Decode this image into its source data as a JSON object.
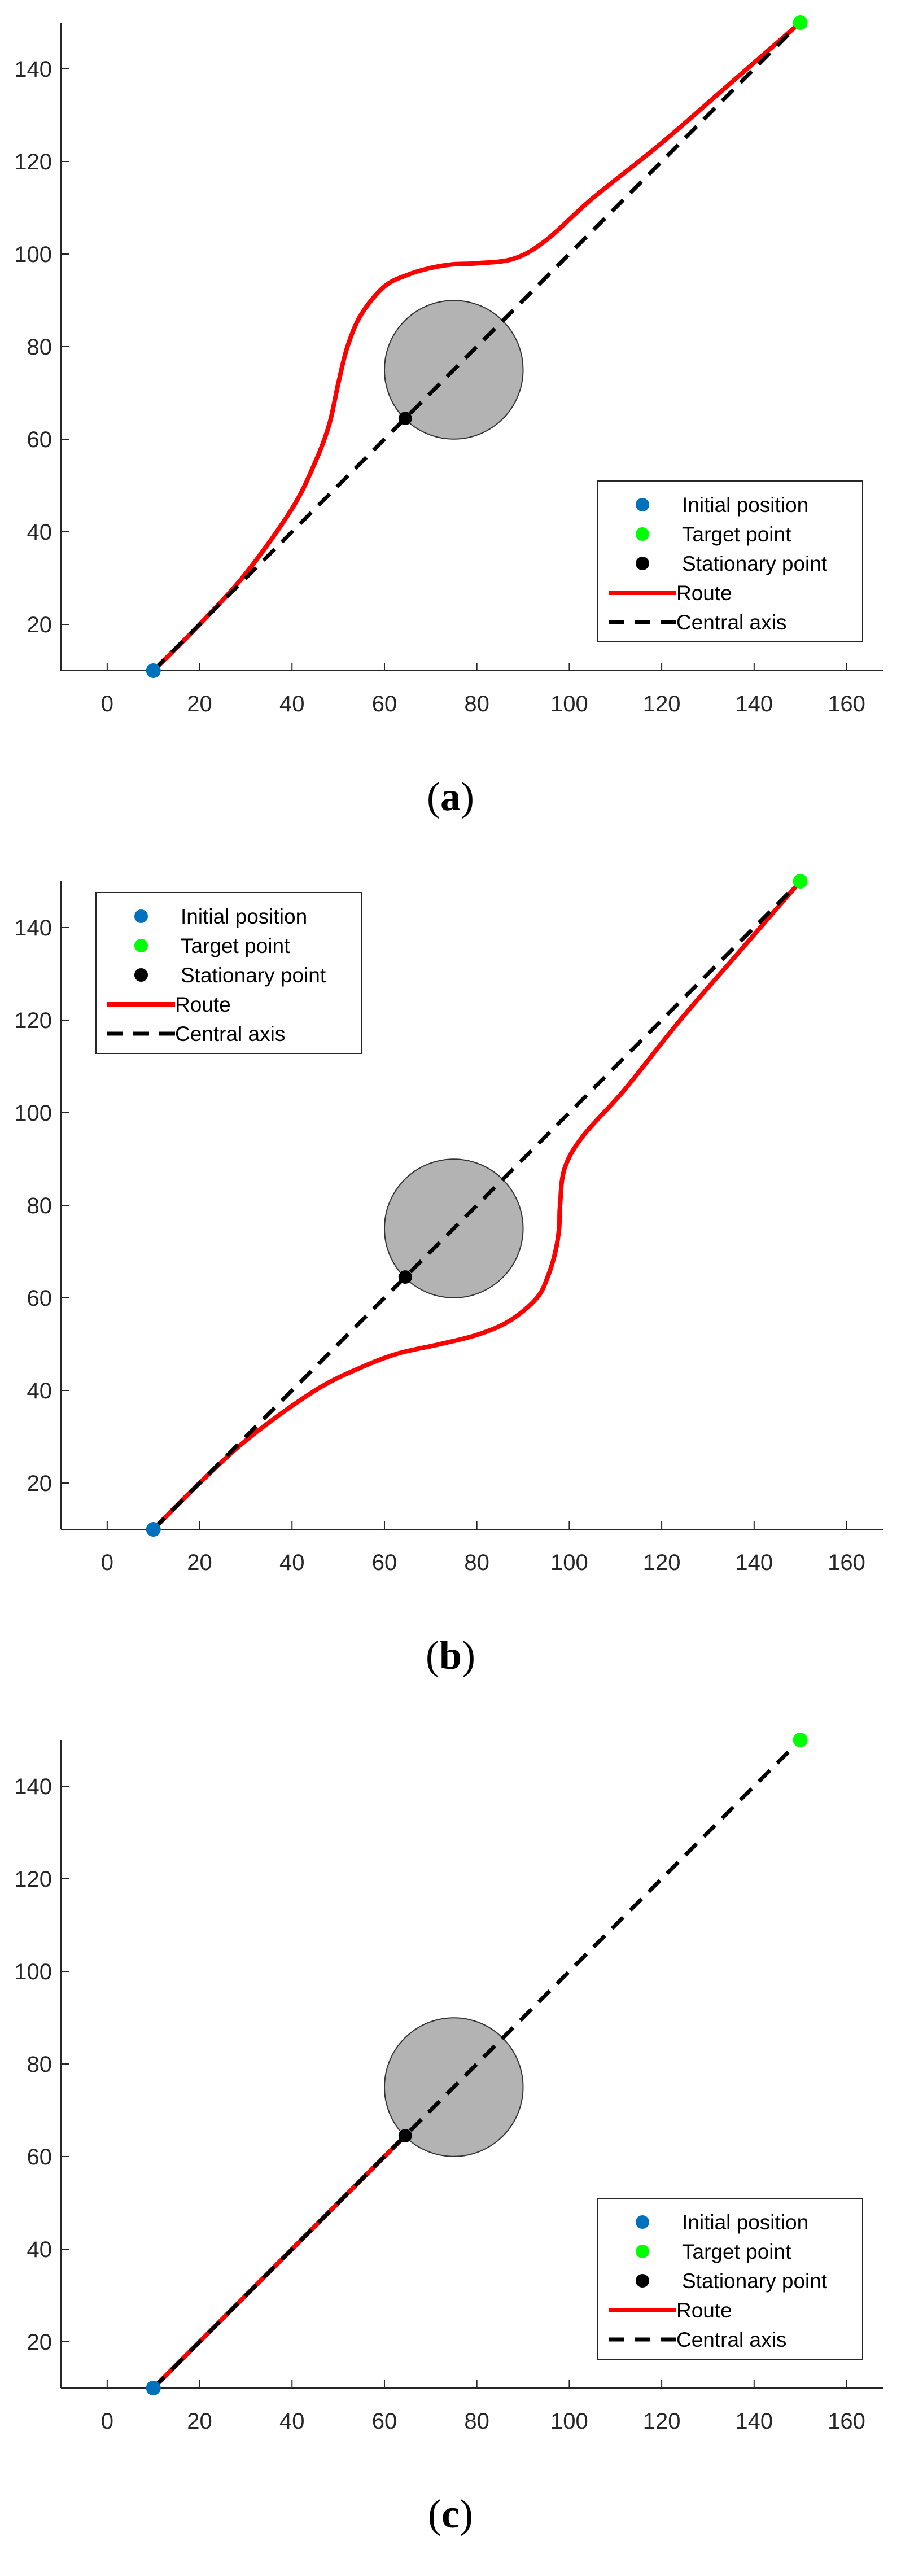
{
  "colors": {
    "initial": "#0072BD",
    "target": "#00FF00",
    "stationary": "#000000",
    "route": "#FF0000",
    "axis": "#000000",
    "obstacle_fill": "#B3B3B3",
    "obstacle_stroke": "#333333"
  },
  "chart_data": [
    {
      "type": "line",
      "panel_label": "a",
      "title": "",
      "xlabel": "",
      "ylabel": "",
      "xlim": [
        -10,
        168
      ],
      "ylim": [
        10,
        150
      ],
      "xticks": [
        0,
        20,
        40,
        60,
        80,
        100,
        120,
        140,
        160
      ],
      "yticks": [
        20,
        40,
        60,
        80,
        100,
        120,
        140
      ],
      "grid": false,
      "legend_placement": "bottom-right",
      "obstacle": {
        "cx": 75,
        "cy": 75,
        "r": 15
      },
      "points": {
        "initial_position": [
          10,
          10
        ],
        "target_point": [
          150,
          150
        ],
        "stationary_point": [
          64.5,
          64.5
        ]
      },
      "series": [
        {
          "name": "Route",
          "x": [
            10,
            20,
            30,
            40,
            45,
            48,
            50,
            52,
            55,
            60,
            65,
            70,
            75,
            80,
            88,
            95,
            105,
            120,
            135,
            150
          ],
          "y": [
            10,
            20,
            31,
            45,
            55,
            63,
            72,
            80,
            87,
            93,
            95.5,
            97,
            97.8,
            98,
            99,
            103,
            112,
            124,
            137,
            150
          ]
        },
        {
          "name": "Central axis",
          "x": [
            10,
            150
          ],
          "y": [
            10,
            150
          ]
        }
      ],
      "legend": [
        "Initial position",
        "Target point",
        "Stationary point",
        "Route",
        "Central axis"
      ]
    },
    {
      "type": "line",
      "panel_label": "b",
      "title": "",
      "xlabel": "",
      "ylabel": "",
      "xlim": [
        -10,
        168
      ],
      "ylim": [
        10,
        150
      ],
      "xticks": [
        0,
        20,
        40,
        60,
        80,
        100,
        120,
        140,
        160
      ],
      "yticks": [
        20,
        40,
        60,
        80,
        100,
        120,
        140
      ],
      "grid": false,
      "legend_placement": "top-left",
      "obstacle": {
        "cx": 75,
        "cy": 75,
        "r": 15
      },
      "points": {
        "initial_position": [
          10,
          10
        ],
        "target_point": [
          150,
          150
        ],
        "stationary_point": [
          64.5,
          64.5
        ]
      },
      "series": [
        {
          "name": "Route",
          "x": [
            10,
            20,
            31,
            45,
            55,
            63,
            72,
            80,
            87,
            93,
            95.5,
            97,
            97.8,
            98,
            99,
            103,
            112,
            124,
            137,
            150
          ],
          "y": [
            10,
            20,
            30,
            40,
            45,
            48,
            50,
            52,
            55,
            60,
            65,
            70,
            75,
            80,
            88,
            95,
            105,
            120,
            135,
            150
          ]
        },
        {
          "name": "Central axis",
          "x": [
            10,
            150
          ],
          "y": [
            10,
            150
          ]
        }
      ],
      "legend": [
        "Initial position",
        "Target point",
        "Stationary point",
        "Route",
        "Central axis"
      ]
    },
    {
      "type": "line",
      "panel_label": "c",
      "title": "",
      "xlabel": "",
      "ylabel": "",
      "xlim": [
        -10,
        168
      ],
      "ylim": [
        10,
        150
      ],
      "xticks": [
        0,
        20,
        40,
        60,
        80,
        100,
        120,
        140,
        160
      ],
      "yticks": [
        20,
        40,
        60,
        80,
        100,
        120,
        140
      ],
      "grid": false,
      "legend_placement": "bottom-right",
      "obstacle": {
        "cx": 75,
        "cy": 75,
        "r": 15
      },
      "points": {
        "initial_position": [
          10,
          10
        ],
        "target_point": [
          150,
          150
        ],
        "stationary_point": [
          64.5,
          64.5
        ]
      },
      "series": [
        {
          "name": "Route",
          "x": [
            10,
            64.5
          ],
          "y": [
            10,
            64.5
          ]
        },
        {
          "name": "Central axis",
          "x": [
            10,
            150
          ],
          "y": [
            10,
            150
          ]
        }
      ],
      "legend": [
        "Initial position",
        "Target point",
        "Stationary point",
        "Route",
        "Central axis"
      ]
    }
  ]
}
